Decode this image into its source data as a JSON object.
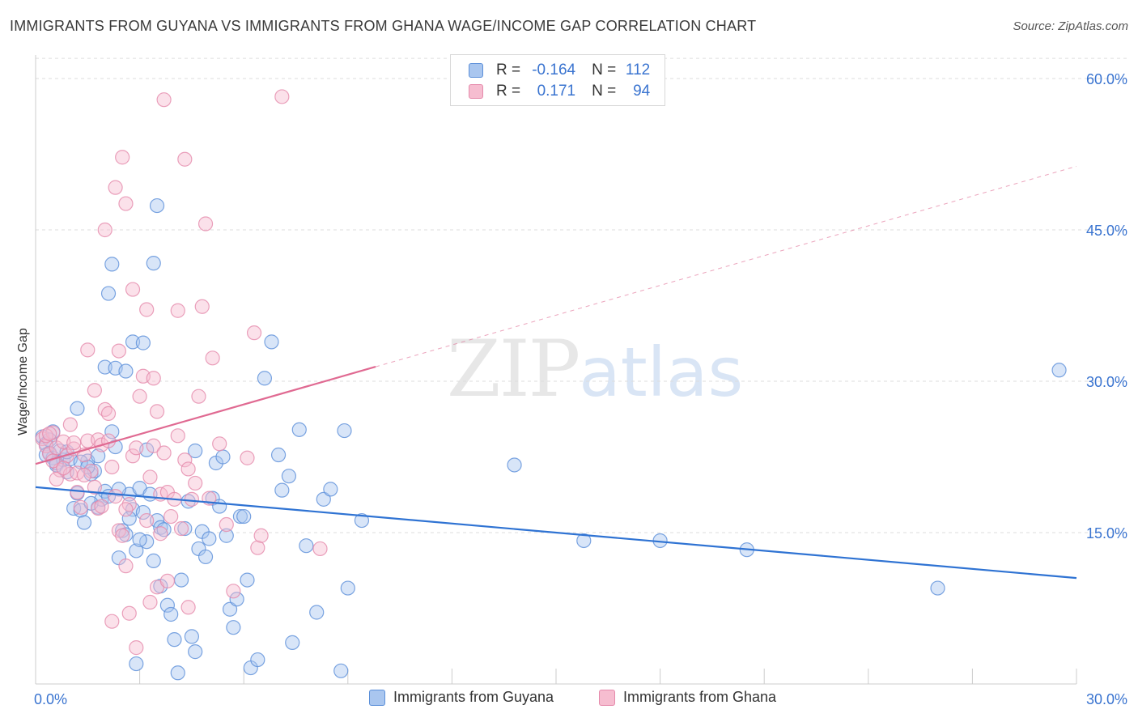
{
  "title": "IMMIGRANTS FROM GUYANA VS IMMIGRANTS FROM GHANA WAGE/INCOME GAP CORRELATION CHART",
  "source": "Source: ZipAtlas.com",
  "watermark": {
    "zip": "ZIP",
    "atlas": "atlas"
  },
  "legend": {
    "r_label": "R =",
    "n_label": "N =",
    "rows": [
      {
        "r": "-0.164",
        "n": "112"
      },
      {
        "r": "0.171",
        "n": "94"
      }
    ]
  },
  "colors": {
    "guyana_fill": "#a9c6ef",
    "guyana_stroke": "#5b8fd9",
    "guyana_line": "#2f73d3",
    "ghana_fill": "#f6bdd0",
    "ghana_stroke": "#e58aab",
    "ghana_line": "#e06a92",
    "axis_text": "#3a74d0",
    "grid": "#dddddd"
  },
  "chart_data": {
    "type": "scatter",
    "title": "IMMIGRANTS FROM GUYANA VS IMMIGRANTS FROM GHANA WAGE/INCOME GAP CORRELATION CHART",
    "xlabel": "",
    "ylabel": "Wage/Income Gap",
    "xlim": [
      0,
      30
    ],
    "ylim": [
      0,
      60
    ],
    "x_tick_labels": [
      "0.0%",
      "30.0%"
    ],
    "y_ticks": [
      15,
      30,
      45,
      60
    ],
    "y_tick_labels": [
      "15.0%",
      "30.0%",
      "45.0%",
      "60.0%"
    ],
    "grid": true,
    "legend_position": "top-center",
    "series": [
      {
        "name": "Immigrants from Guyana",
        "r": -0.164,
        "n": 112,
        "trend": {
          "x": [
            0,
            30
          ],
          "y": [
            19.5,
            10.5
          ],
          "dashed_extension": false
        },
        "points": [
          [
            0.2,
            24.5
          ],
          [
            0.3,
            23.8
          ],
          [
            0.4,
            22.9
          ],
          [
            0.5,
            22.4
          ],
          [
            0.6,
            21.7
          ],
          [
            0.7,
            23.1
          ],
          [
            0.8,
            22.2
          ],
          [
            0.9,
            21.0
          ],
          [
            1.0,
            22.3
          ],
          [
            1.1,
            17.4
          ],
          [
            1.2,
            18.9
          ],
          [
            1.3,
            17.2
          ],
          [
            1.4,
            16.0
          ],
          [
            1.5,
            22.1
          ],
          [
            1.6,
            20.8
          ],
          [
            1.7,
            21.1
          ],
          [
            1.8,
            17.5
          ],
          [
            1.9,
            18.3
          ],
          [
            2.0,
            19.1
          ],
          [
            2.1,
            18.6
          ],
          [
            2.2,
            25.0
          ],
          [
            2.3,
            23.5
          ],
          [
            2.4,
            12.5
          ],
          [
            2.5,
            15.2
          ],
          [
            2.6,
            14.8
          ],
          [
            2.7,
            18.8
          ],
          [
            2.8,
            17.3
          ],
          [
            2.9,
            13.2
          ],
          [
            3.0,
            19.4
          ],
          [
            3.1,
            17.0
          ],
          [
            3.2,
            14.1
          ],
          [
            3.3,
            18.8
          ],
          [
            3.4,
            12.2
          ],
          [
            3.5,
            16.2
          ],
          [
            3.6,
            15.5
          ],
          [
            3.7,
            15.3
          ],
          [
            3.8,
            7.8
          ],
          [
            3.9,
            6.9
          ],
          [
            4.0,
            4.4
          ],
          [
            4.2,
            10.3
          ],
          [
            4.3,
            15.4
          ],
          [
            4.4,
            18.1
          ],
          [
            4.5,
            4.7
          ],
          [
            4.6,
            3.2
          ],
          [
            4.7,
            13.4
          ],
          [
            4.8,
            15.1
          ],
          [
            4.9,
            12.6
          ],
          [
            5.0,
            14.4
          ],
          [
            5.1,
            18.4
          ],
          [
            5.2,
            21.9
          ],
          [
            5.3,
            17.6
          ],
          [
            5.4,
            22.5
          ],
          [
            5.5,
            14.7
          ],
          [
            5.6,
            7.4
          ],
          [
            5.7,
            5.6
          ],
          [
            5.8,
            8.4
          ],
          [
            5.9,
            16.6
          ],
          [
            6.0,
            16.6
          ],
          [
            6.1,
            10.3
          ],
          [
            6.2,
            1.6
          ],
          [
            6.4,
            2.4
          ],
          [
            6.6,
            30.3
          ],
          [
            6.8,
            33.9
          ],
          [
            7.0,
            22.7
          ],
          [
            7.1,
            19.2
          ],
          [
            7.3,
            20.6
          ],
          [
            7.4,
            4.1
          ],
          [
            7.6,
            25.2
          ],
          [
            7.8,
            13.7
          ],
          [
            8.1,
            7.1
          ],
          [
            8.3,
            18.3
          ],
          [
            8.5,
            19.3
          ],
          [
            8.8,
            1.3
          ],
          [
            8.9,
            25.1
          ],
          [
            9.0,
            9.5
          ],
          [
            9.4,
            16.2
          ],
          [
            1.2,
            27.3
          ],
          [
            1.8,
            22.6
          ],
          [
            2.0,
            31.4
          ],
          [
            2.1,
            38.7
          ],
          [
            2.2,
            41.6
          ],
          [
            2.3,
            31.3
          ],
          [
            2.6,
            31.0
          ],
          [
            2.8,
            33.9
          ],
          [
            3.1,
            33.8
          ],
          [
            3.4,
            41.7
          ],
          [
            3.5,
            47.4
          ],
          [
            1.3,
            22.0
          ],
          [
            0.5,
            25.0
          ],
          [
            0.6,
            21.9
          ],
          [
            1.6,
            17.9
          ],
          [
            2.4,
            19.3
          ],
          [
            2.9,
            2.0
          ],
          [
            4.1,
            1.1
          ],
          [
            3.2,
            23.2
          ],
          [
            4.6,
            23.1
          ],
          [
            0.3,
            22.7
          ],
          [
            0.4,
            24.2
          ],
          [
            0.9,
            23.0
          ],
          [
            1.5,
            21.5
          ],
          [
            2.7,
            16.4
          ],
          [
            3.0,
            14.3
          ],
          [
            3.6,
            9.7
          ],
          [
            13.8,
            21.7
          ],
          [
            15.8,
            14.2
          ],
          [
            18.0,
            14.2
          ],
          [
            20.5,
            13.3
          ],
          [
            26.0,
            9.5
          ],
          [
            29.5,
            31.1
          ]
        ]
      },
      {
        "name": "Immigrants from Ghana",
        "r": 0.171,
        "n": 94,
        "trend": {
          "x": [
            0,
            30
          ],
          "y": [
            21.8,
            51.3
          ],
          "solid_until_x": 9.8,
          "dashed_extension": true
        },
        "points": [
          [
            0.2,
            24.3
          ],
          [
            0.3,
            23.6
          ],
          [
            0.4,
            22.8
          ],
          [
            0.5,
            24.9
          ],
          [
            0.6,
            23.4
          ],
          [
            0.7,
            21.2
          ],
          [
            0.8,
            24.0
          ],
          [
            0.9,
            22.6
          ],
          [
            1.0,
            20.8
          ],
          [
            1.1,
            23.3
          ],
          [
            1.2,
            20.9
          ],
          [
            1.3,
            17.5
          ],
          [
            1.4,
            22.7
          ],
          [
            1.5,
            24.1
          ],
          [
            1.6,
            21.1
          ],
          [
            1.7,
            19.5
          ],
          [
            1.8,
            24.2
          ],
          [
            1.9,
            23.7
          ],
          [
            2.0,
            27.2
          ],
          [
            2.1,
            24.1
          ],
          [
            2.2,
            21.5
          ],
          [
            2.3,
            18.6
          ],
          [
            2.4,
            15.2
          ],
          [
            2.5,
            14.7
          ],
          [
            2.6,
            11.7
          ],
          [
            2.7,
            17.8
          ],
          [
            2.8,
            22.6
          ],
          [
            2.9,
            23.4
          ],
          [
            3.0,
            28.5
          ],
          [
            3.1,
            30.5
          ],
          [
            3.2,
            16.2
          ],
          [
            3.3,
            20.5
          ],
          [
            3.4,
            23.6
          ],
          [
            3.5,
            27.0
          ],
          [
            3.6,
            18.8
          ],
          [
            3.7,
            22.9
          ],
          [
            3.8,
            19.0
          ],
          [
            3.9,
            16.6
          ],
          [
            4.0,
            18.3
          ],
          [
            4.1,
            24.6
          ],
          [
            4.2,
            15.4
          ],
          [
            4.3,
            22.2
          ],
          [
            4.4,
            21.3
          ],
          [
            4.5,
            18.3
          ],
          [
            4.6,
            19.9
          ],
          [
            4.7,
            28.5
          ],
          [
            4.8,
            37.4
          ],
          [
            4.9,
            45.6
          ],
          [
            5.0,
            18.4
          ],
          [
            5.1,
            32.3
          ],
          [
            5.3,
            23.8
          ],
          [
            5.5,
            15.8
          ],
          [
            5.7,
            9.2
          ],
          [
            6.1,
            22.4
          ],
          [
            6.3,
            34.8
          ],
          [
            6.4,
            13.5
          ],
          [
            7.1,
            58.2
          ],
          [
            1.5,
            33.1
          ],
          [
            1.7,
            29.1
          ],
          [
            2.0,
            45.0
          ],
          [
            2.3,
            49.2
          ],
          [
            2.5,
            52.2
          ],
          [
            2.6,
            47.6
          ],
          [
            2.8,
            39.1
          ],
          [
            3.2,
            37.1
          ],
          [
            3.4,
            30.3
          ],
          [
            3.7,
            57.9
          ],
          [
            4.1,
            37.0
          ],
          [
            4.3,
            52.0
          ],
          [
            0.5,
            22.1
          ],
          [
            0.6,
            20.3
          ],
          [
            1.0,
            25.7
          ],
          [
            1.8,
            17.4
          ],
          [
            2.2,
            6.2
          ],
          [
            2.7,
            7.0
          ],
          [
            2.9,
            3.6
          ],
          [
            3.3,
            8.1
          ],
          [
            3.5,
            9.6
          ],
          [
            3.8,
            10.2
          ],
          [
            4.4,
            7.6
          ],
          [
            0.3,
            24.6
          ],
          [
            0.4,
            24.8
          ],
          [
            0.8,
            21.4
          ],
          [
            1.1,
            23.9
          ],
          [
            1.4,
            20.7
          ],
          [
            1.9,
            17.6
          ],
          [
            2.1,
            26.8
          ],
          [
            2.4,
            33.0
          ],
          [
            3.6,
            14.9
          ],
          [
            8.2,
            13.4
          ],
          [
            6.5,
            14.7
          ],
          [
            1.2,
            19.0
          ],
          [
            2.6,
            17.3
          ]
        ]
      }
    ]
  },
  "legend_bottom": [
    "Immigrants from Guyana",
    "Immigrants from Ghana"
  ]
}
